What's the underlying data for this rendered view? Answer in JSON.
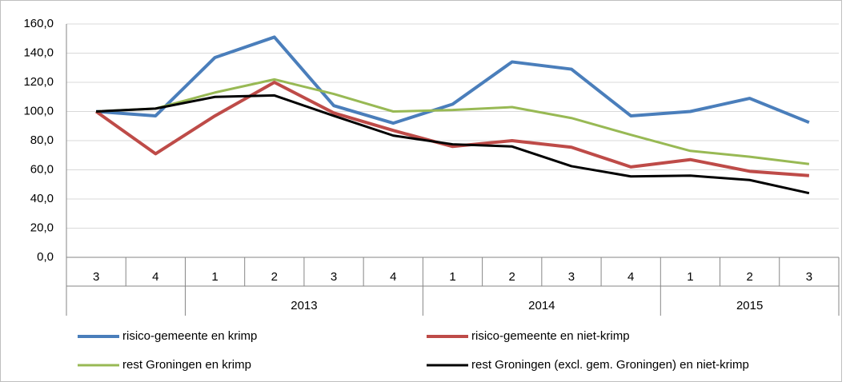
{
  "chart_data": {
    "type": "line",
    "categories": [
      "3",
      "4",
      "1",
      "2",
      "3",
      "4",
      "1",
      "2",
      "3",
      "4",
      "1",
      "2",
      "3"
    ],
    "category_groups": [
      null,
      null,
      "2013",
      "2013",
      "2013",
      "2013",
      "2014",
      "2014",
      "2014",
      "2014",
      "2015",
      "2015",
      "2015"
    ],
    "ylim": [
      0,
      160
    ],
    "yticks": [
      {
        "value": 0,
        "label": "0,0"
      },
      {
        "value": 20,
        "label": "20,0"
      },
      {
        "value": 40,
        "label": "40,0"
      },
      {
        "value": 60,
        "label": "60,0"
      },
      {
        "value": 80,
        "label": "80,0"
      },
      {
        "value": 100,
        "label": "100,0"
      },
      {
        "value": 120,
        "label": "120,0"
      },
      {
        "value": 140,
        "label": "140,0"
      },
      {
        "value": 160,
        "label": "160,0"
      }
    ],
    "grid": true,
    "series": [
      {
        "name": "risico-gemeente en krimp",
        "color": "#4a7ebb",
        "values": [
          100,
          97,
          137,
          151,
          104,
          92,
          105,
          134,
          129,
          97,
          100,
          109,
          92.5
        ]
      },
      {
        "name": "risico-gemeente en niet-krimp",
        "color": "#be4b48",
        "values": [
          100,
          71,
          97,
          120,
          99,
          87,
          76,
          80,
          75.5,
          62,
          67,
          59,
          56
        ]
      },
      {
        "name": "rest Groningen en krimp",
        "color": "#98b954",
        "values": [
          100,
          102,
          113,
          122,
          112,
          100,
          101,
          103,
          95.5,
          84,
          73,
          69,
          64
        ]
      },
      {
        "name": "rest Groningen (excl. gem. Groningen) en niet-krimp",
        "color": "#000000",
        "values": [
          100,
          102,
          110,
          111,
          97,
          83.5,
          77.5,
          76,
          62.5,
          55.5,
          56,
          53,
          44
        ]
      }
    ]
  }
}
